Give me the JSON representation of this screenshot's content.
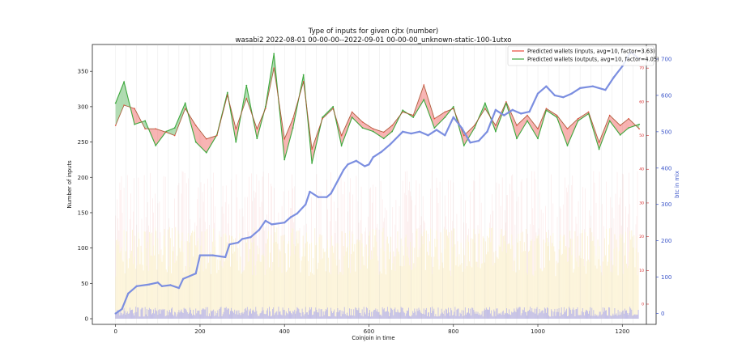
{
  "chart_data": {
    "type": "line",
    "title": "Type of inputs for given cjtx (number)",
    "subtitle": "wasabi2 2022-08-01 00-00-00--2022-09-01 00-00-00_unknown-static-100-1utxo",
    "xlabel": "Coinjoin in time",
    "ylabel": "Number of inputs",
    "y2label": "btc in mix",
    "xlim": [
      -55,
      1280
    ],
    "ylim": [
      -8,
      388
    ],
    "y2lim": [
      -30,
      740
    ],
    "y3lim": [
      -6,
      77
    ],
    "xticks": [
      0,
      200,
      400,
      600,
      800,
      1000,
      1200
    ],
    "yticks": [
      0,
      50,
      100,
      150,
      200,
      250,
      300,
      350
    ],
    "y2ticks": [
      0,
      100,
      200,
      300,
      400,
      500,
      600,
      700
    ],
    "y3ticks": [
      0,
      10,
      20,
      30,
      40,
      50,
      60,
      70
    ],
    "legend_position": "top-right",
    "grid": "vertical lines",
    "series": [
      {
        "name": "Predicted wallets (inputs, avg=10, factor=3.63)",
        "color": "#e8493a",
        "axis": "right-red",
        "x": [
          0,
          20,
          45,
          70,
          95,
          120,
          140,
          165,
          190,
          215,
          240,
          265,
          285,
          310,
          335,
          355,
          375,
          400,
          420,
          445,
          465,
          490,
          515,
          535,
          560,
          585,
          610,
          635,
          655,
          680,
          705,
          730,
          755,
          780,
          800,
          825,
          850,
          875,
          900,
          925,
          950,
          975,
          1000,
          1020,
          1045,
          1070,
          1095,
          1120,
          1145,
          1170,
          1195,
          1215,
          1240
        ],
        "values": [
          53,
          59,
          58,
          52,
          52,
          51,
          50,
          58,
          53,
          49,
          50,
          62,
          52,
          61,
          52,
          58,
          70,
          49,
          55,
          66,
          46,
          55,
          58,
          50,
          57,
          54,
          52,
          51,
          53,
          57,
          56,
          65,
          55,
          57,
          58,
          50,
          53,
          58,
          53,
          60,
          53,
          56,
          52,
          58,
          56,
          52,
          55,
          57,
          48,
          56,
          53,
          55,
          52
        ]
      },
      {
        "name": "Predicted wallets (outputs, avg=10, factor=4.05)",
        "color": "#3da83d",
        "axis": "left",
        "x": [
          0,
          20,
          45,
          70,
          95,
          120,
          140,
          165,
          190,
          215,
          240,
          265,
          285,
          310,
          335,
          355,
          375,
          400,
          420,
          445,
          465,
          490,
          515,
          535,
          560,
          585,
          610,
          635,
          655,
          680,
          705,
          730,
          755,
          780,
          800,
          825,
          850,
          875,
          900,
          925,
          950,
          975,
          1000,
          1020,
          1045,
          1070,
          1095,
          1120,
          1145,
          1170,
          1195,
          1215,
          1240
        ],
        "values": [
          305,
          335,
          275,
          280,
          245,
          265,
          270,
          305,
          250,
          235,
          260,
          320,
          250,
          330,
          255,
          300,
          375,
          225,
          270,
          345,
          220,
          285,
          300,
          245,
          285,
          270,
          265,
          255,
          265,
          295,
          285,
          310,
          270,
          285,
          300,
          245,
          270,
          305,
          265,
          305,
          255,
          280,
          255,
          295,
          285,
          245,
          280,
          290,
          240,
          280,
          260,
          270,
          275
        ]
      },
      {
        "name": "btc in mix",
        "color": "#7b8ee0",
        "axis": "right-blue",
        "x": [
          0,
          15,
          30,
          50,
          80,
          100,
          110,
          130,
          150,
          160,
          190,
          200,
          230,
          260,
          270,
          290,
          300,
          320,
          340,
          355,
          370,
          400,
          415,
          430,
          450,
          460,
          480,
          500,
          510,
          540,
          550,
          570,
          590,
          600,
          610,
          630,
          650,
          680,
          700,
          720,
          740,
          760,
          780,
          800,
          820,
          840,
          860,
          880,
          900,
          920,
          940,
          960,
          980,
          1000,
          1020,
          1040,
          1060,
          1080,
          1100,
          1130,
          1160,
          1180,
          1200,
          1220,
          1240
        ],
        "values": [
          0,
          12,
          55,
          75,
          80,
          85,
          75,
          78,
          70,
          95,
          110,
          160,
          160,
          155,
          190,
          195,
          205,
          210,
          230,
          255,
          245,
          250,
          265,
          275,
          300,
          335,
          320,
          320,
          330,
          395,
          410,
          420,
          405,
          410,
          430,
          445,
          465,
          500,
          495,
          500,
          490,
          505,
          490,
          540,
          510,
          470,
          475,
          500,
          560,
          545,
          560,
          550,
          555,
          605,
          625,
          600,
          595,
          605,
          620,
          625,
          615,
          650,
          680,
          720,
          700
        ]
      }
    ]
  }
}
